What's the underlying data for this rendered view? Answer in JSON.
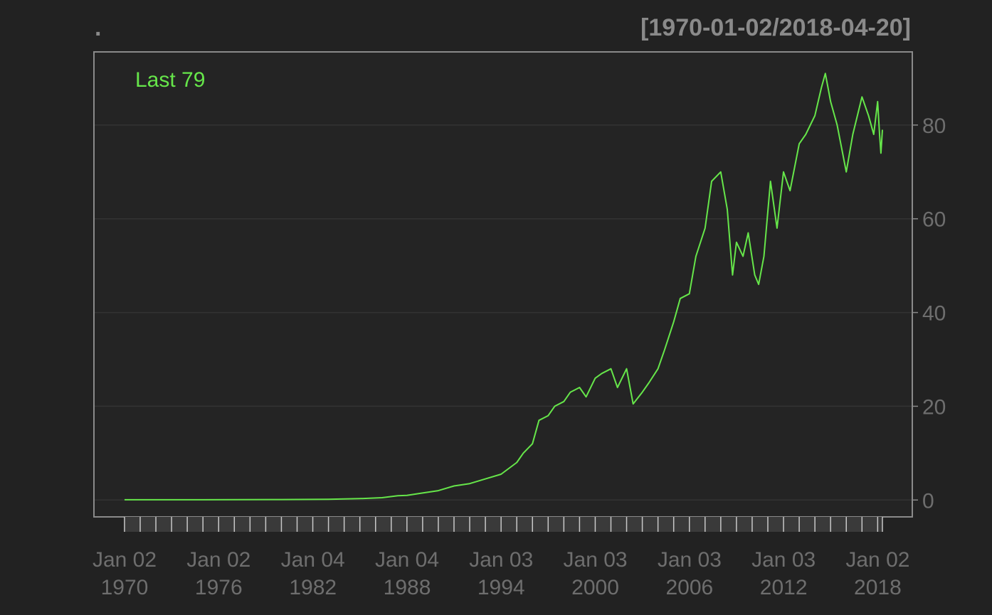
{
  "colors": {
    "background": "#222222",
    "plot_background": "#242424",
    "frame": "#8a8a8a",
    "grid": "#333333",
    "tick_label": "#6e6e6e",
    "title": "#8a8a8a",
    "series": "#66e64a"
  },
  "chart_data": {
    "type": "line",
    "title": ".",
    "date_range_label": "[1970-01-02/2018-04-20]",
    "legend_text": "Last 79",
    "legend_position": "top-left",
    "xlabel": "",
    "ylabel": "",
    "grid": true,
    "x_range": [
      "1970-01-02",
      "2018-04-20"
    ],
    "ylim": [
      -3.5,
      95
    ],
    "y_ticks": [
      0,
      20,
      40,
      60,
      80
    ],
    "y_tick_labels": [
      "0",
      "20",
      "40",
      "60",
      "80"
    ],
    "x_tick_labels": [
      {
        "line1": "Jan 02",
        "line2": "1970",
        "date": "1970-01-02"
      },
      {
        "line1": "Jan 02",
        "line2": "1976",
        "date": "1976-01-02"
      },
      {
        "line1": "Jan 04",
        "line2": "1982",
        "date": "1982-01-04"
      },
      {
        "line1": "Jan 04",
        "line2": "1988",
        "date": "1988-01-04"
      },
      {
        "line1": "Jan 03",
        "line2": "1994",
        "date": "1994-01-03"
      },
      {
        "line1": "Jan 03",
        "line2": "2000",
        "date": "2000-01-03"
      },
      {
        "line1": "Jan 03",
        "line2": "2006",
        "date": "2006-01-03"
      },
      {
        "line1": "Jan 03",
        "line2": "2012",
        "date": "2012-01-03"
      },
      {
        "line1": "Jan 02",
        "line2": "2018",
        "date": "2018-01-02"
      }
    ],
    "x_minor_ticks": [
      1970,
      1971,
      1972,
      1973,
      1974,
      1975,
      1976,
      1977,
      1978,
      1979,
      1980,
      1981,
      1982,
      1983,
      1984,
      1985,
      1986,
      1987,
      1988,
      1989,
      1990,
      1991,
      1992,
      1993,
      1994,
      1995,
      1996,
      1997,
      1998,
      1999,
      2000,
      2001,
      2002,
      2003,
      2004,
      2005,
      2006,
      2007,
      2008,
      2009,
      2010,
      2011,
      2012,
      2013,
      2014,
      2015,
      2016,
      2017,
      2018
    ],
    "series": [
      {
        "name": "Last",
        "points": [
          [
            "1970-01-02",
            0.05
          ],
          [
            "1975-01-01",
            0.05
          ],
          [
            "1980-01-01",
            0.1
          ],
          [
            "1983-01-01",
            0.15
          ],
          [
            "1985-01-01",
            0.3
          ],
          [
            "1986-06-01",
            0.5
          ],
          [
            "1987-06-01",
            0.9
          ],
          [
            "1988-01-01",
            1.0
          ],
          [
            "1989-01-01",
            1.5
          ],
          [
            "1990-01-01",
            2.0
          ],
          [
            "1991-01-01",
            3.0
          ],
          [
            "1992-01-01",
            3.5
          ],
          [
            "1993-01-01",
            4.5
          ],
          [
            "1994-01-01",
            5.5
          ],
          [
            "1995-01-01",
            8.0
          ],
          [
            "1995-06-01",
            10.0
          ],
          [
            "1996-01-01",
            12.0
          ],
          [
            "1996-06-01",
            17.0
          ],
          [
            "1997-01-01",
            18.0
          ],
          [
            "1997-06-01",
            20.0
          ],
          [
            "1998-01-01",
            21.0
          ],
          [
            "1998-06-01",
            23.0
          ],
          [
            "1999-01-01",
            24.0
          ],
          [
            "1999-06-01",
            22.0
          ],
          [
            "2000-01-01",
            26.0
          ],
          [
            "2000-06-01",
            27.0
          ],
          [
            "2001-01-01",
            28.0
          ],
          [
            "2001-06-01",
            24.0
          ],
          [
            "2002-01-01",
            28.0
          ],
          [
            "2002-06-01",
            20.5
          ],
          [
            "2003-01-01",
            23.0
          ],
          [
            "2003-06-01",
            25.0
          ],
          [
            "2004-01-01",
            28.0
          ],
          [
            "2004-06-01",
            32.0
          ],
          [
            "2005-01-01",
            38.0
          ],
          [
            "2005-06-01",
            43.0
          ],
          [
            "2006-01-01",
            44.0
          ],
          [
            "2006-06-01",
            52.0
          ],
          [
            "2007-01-01",
            58.0
          ],
          [
            "2007-06-01",
            68.0
          ],
          [
            "2008-01-01",
            70.0
          ],
          [
            "2008-06-01",
            62.0
          ],
          [
            "2008-10-01",
            48.0
          ],
          [
            "2009-01-01",
            55.0
          ],
          [
            "2009-06-01",
            52.0
          ],
          [
            "2009-10-01",
            57.0
          ],
          [
            "2010-03-01",
            48.0
          ],
          [
            "2010-06-01",
            46.0
          ],
          [
            "2010-10-01",
            52.0
          ],
          [
            "2011-03-01",
            68.0
          ],
          [
            "2011-08-01",
            58.0
          ],
          [
            "2012-01-01",
            70.0
          ],
          [
            "2012-06-01",
            66.0
          ],
          [
            "2013-01-01",
            76.0
          ],
          [
            "2013-06-01",
            78.0
          ],
          [
            "2014-01-01",
            82.0
          ],
          [
            "2014-06-01",
            88.0
          ],
          [
            "2014-09-01",
            91.0
          ],
          [
            "2015-01-01",
            85.0
          ],
          [
            "2015-06-01",
            80.0
          ],
          [
            "2016-01-01",
            70.0
          ],
          [
            "2016-06-01",
            78.0
          ],
          [
            "2017-01-01",
            86.0
          ],
          [
            "2017-06-01",
            82.0
          ],
          [
            "2017-10-01",
            78.0
          ],
          [
            "2018-01-01",
            85.0
          ],
          [
            "2018-02-15",
            78.0
          ],
          [
            "2018-03-15",
            74.0
          ],
          [
            "2018-04-20",
            79.0
          ]
        ]
      }
    ]
  }
}
